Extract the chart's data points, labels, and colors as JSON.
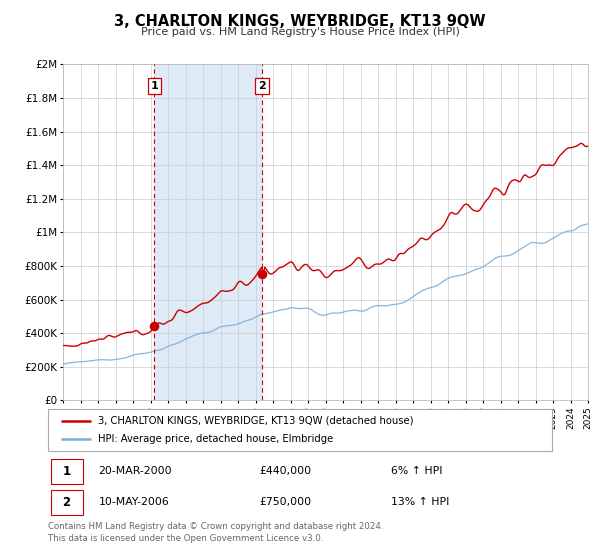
{
  "title": "3, CHARLTON KINGS, WEYBRIDGE, KT13 9QW",
  "subtitle": "Price paid vs. HM Land Registry's House Price Index (HPI)",
  "legend_line1": "3, CHARLTON KINGS, WEYBRIDGE, KT13 9QW (detached house)",
  "legend_line2": "HPI: Average price, detached house, Elmbridge",
  "transaction1_date": "20-MAR-2000",
  "transaction1_price": "£440,000",
  "transaction1_hpi": "6% ↑ HPI",
  "transaction1_year": 2000.22,
  "transaction1_value": 440000,
  "transaction2_date": "10-MAY-2006",
  "transaction2_price": "£750,000",
  "transaction2_hpi": "13% ↑ HPI",
  "transaction2_year": 2006.37,
  "transaction2_value": 750000,
  "footer_line1": "Contains HM Land Registry data © Crown copyright and database right 2024.",
  "footer_line2": "This data is licensed under the Open Government Licence v3.0.",
  "red_color": "#cc0000",
  "blue_color": "#7aaddc",
  "shaded_color": "#deeaf5",
  "grid_color": "#cccccc",
  "background_color": "#ffffff",
  "ylim": [
    0,
    2000000
  ],
  "xlim_start": 1995,
  "xlim_end": 2025,
  "ytick_labels": [
    "£0",
    "£200K",
    "£400K",
    "£600K",
    "£800K",
    "£1M",
    "£1.2M",
    "£1.4M",
    "£1.6M",
    "£1.8M",
    "£2M"
  ],
  "ytick_values": [
    0,
    200000,
    400000,
    600000,
    800000,
    1000000,
    1200000,
    1400000,
    1600000,
    1800000,
    2000000
  ]
}
